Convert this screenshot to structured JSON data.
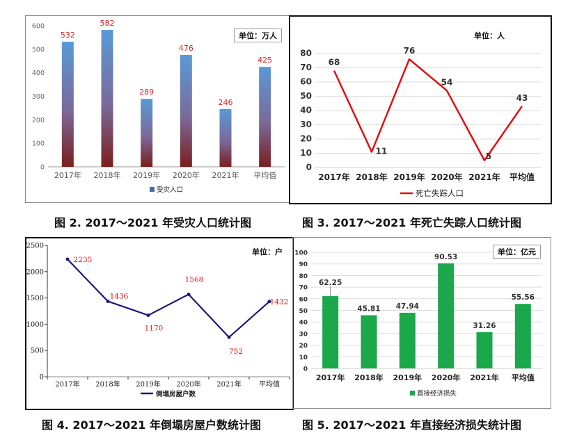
{
  "captions": {
    "fig2": "图 2.   2017～2021 年受灾人口统计图",
    "fig3": "图 3.   2017～2021 年死亡失踪人口统计图",
    "fig4": "图 4.   2017～2021 年倒塌房屋户数统计图",
    "fig5": "图 5.   2017～2021 年直接经济损失统计图"
  },
  "chart_data": [
    {
      "id": "fig2",
      "type": "bar",
      "unit": "单位：万人",
      "categories": [
        "2017年",
        "2018年",
        "2019年",
        "2020年",
        "2021年",
        "平均值"
      ],
      "series": [
        {
          "name": "受灾人口",
          "values": [
            532,
            582,
            289,
            476,
            246,
            425
          ]
        }
      ],
      "labels": [
        "532",
        "582",
        "289",
        "476",
        "246",
        "425"
      ],
      "ylim": [
        0,
        600
      ],
      "yticks": [
        "0",
        "100",
        "200",
        "300",
        "400",
        "500",
        "600"
      ],
      "grid": false,
      "legend": "bottom",
      "colors": {
        "bar_top": "#5a9ad6",
        "bar_bottom": "#7a1e1e",
        "label": "#e02020",
        "legend_swatch": "#4a6aa8"
      }
    },
    {
      "id": "fig3",
      "type": "line",
      "unit": "单位：人",
      "categories": [
        "2017年",
        "2018年",
        "2019年",
        "2020年",
        "2021年",
        "平均值"
      ],
      "series": [
        {
          "name": "死亡失踪人口",
          "values": [
            68,
            11,
            76,
            54,
            5,
            43
          ]
        }
      ],
      "labels": [
        "68",
        "11",
        "76",
        "54",
        "5",
        "43"
      ],
      "ylim": [
        0,
        80
      ],
      "yticks": [
        "0",
        "10",
        "20",
        "30",
        "40",
        "50",
        "60",
        "70",
        "80"
      ],
      "grid": true,
      "legend": "bottom",
      "colors": {
        "line": "#e01010",
        "label": "#333333"
      }
    },
    {
      "id": "fig4",
      "type": "line",
      "unit": "单位：户",
      "categories": [
        "2017年",
        "2018年",
        "2019年",
        "2020年",
        "2021年",
        "平均值"
      ],
      "series": [
        {
          "name": "倒塌房屋户数",
          "values": [
            2235,
            1436,
            1170,
            1568,
            752,
            1432
          ]
        }
      ],
      "labels": [
        "2235",
        "1436",
        "1170",
        "1568",
        "752",
        "1432"
      ],
      "ylim": [
        0,
        2500
      ],
      "yticks": [
        "0",
        "500",
        "1000",
        "1500",
        "2000",
        "2500"
      ],
      "grid": false,
      "legend": "bottom",
      "colors": {
        "line": "#1a1a7a",
        "label": "#e01010"
      }
    },
    {
      "id": "fig5",
      "type": "bar",
      "unit": "单位：亿元",
      "categories": [
        "2017年",
        "2018年",
        "2019年",
        "2020年",
        "2021年",
        "平均值"
      ],
      "series": [
        {
          "name": "直接经济损失",
          "values": [
            62.25,
            45.81,
            47.94,
            90.53,
            31.26,
            55.56
          ]
        }
      ],
      "labels": [
        "62.25",
        "45.81",
        "47.94",
        "90.53",
        "31.26",
        "55.56"
      ],
      "ylim": [
        0,
        100
      ],
      "yticks": [
        "0",
        "10",
        "20",
        "30",
        "40",
        "50",
        "60",
        "70",
        "80",
        "90",
        "100"
      ],
      "grid": true,
      "legend": "bottom",
      "colors": {
        "bar": "#1aa84a",
        "label": "#333333"
      }
    }
  ]
}
